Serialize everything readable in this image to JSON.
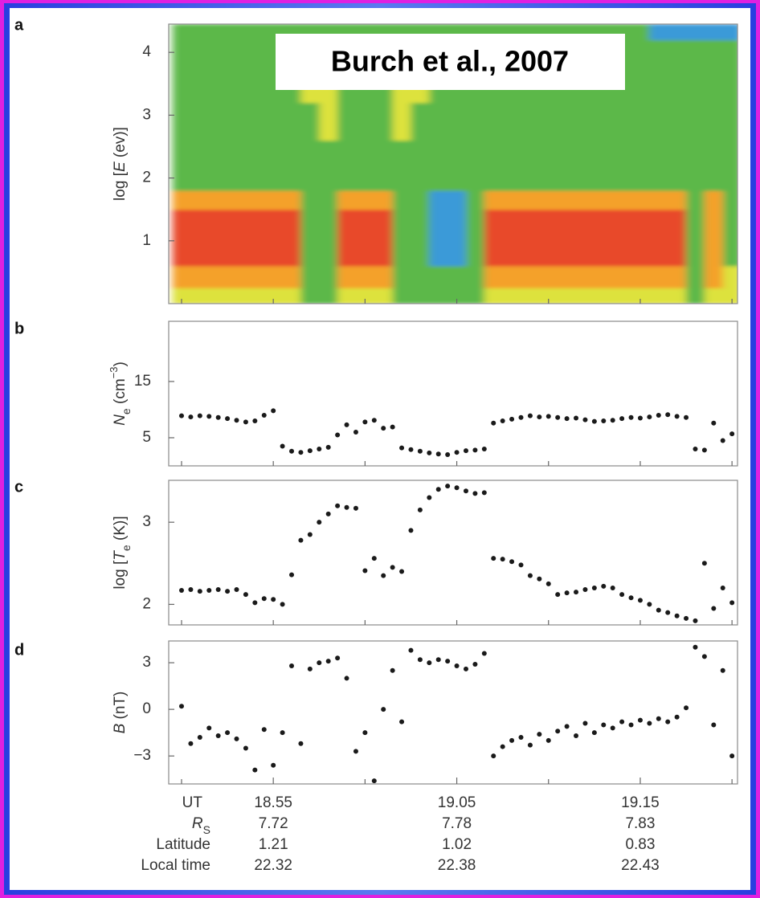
{
  "annotation": "Burch et al., 2007",
  "chart_data": [
    {
      "type": "heatmap",
      "panel": "a",
      "y_label": [
        {
          "text": "log ["
        },
        {
          "text": "E",
          "italic": true
        },
        {
          "text": " (ev)]"
        }
      ],
      "xlim": [
        49.3,
        80.3
      ],
      "xminorticks": [
        50,
        55,
        60,
        65,
        70,
        75,
        80
      ],
      "ylim": [
        0,
        4.45
      ],
      "yticks": [
        1,
        2,
        3,
        4
      ],
      "colorscale": [
        "#3a9ad8",
        "#5cb84a",
        "#dde23c",
        "#f4a12a",
        "#e8482c"
      ],
      "x_edges": [
        49.5,
        50.5,
        51.5,
        52.5,
        53.5,
        54.5,
        55.5,
        56.5,
        57.5,
        58.5,
        59.5,
        60.5,
        61.5,
        62.5,
        63.5,
        64.5,
        65.5,
        66.5,
        67.5,
        68.5,
        69.5,
        70.5,
        71.5,
        72.5,
        73.5,
        74.5,
        75.5,
        76.5,
        77.5,
        78.5,
        79.5,
        80.5
      ],
      "y_edges": [
        0,
        0.25,
        0.6,
        1.5,
        1.8,
        2.6,
        3.2,
        3.5,
        4.2,
        4.45
      ],
      "z": [
        [
          2,
          2,
          2,
          2,
          2,
          2,
          2,
          1,
          1,
          2,
          2,
          2,
          1,
          1,
          1,
          1,
          1,
          2,
          2,
          2,
          2,
          2,
          2,
          2,
          2,
          2,
          2,
          2,
          1,
          2,
          2
        ],
        [
          3,
          3,
          3,
          3,
          3,
          3,
          3,
          1,
          1,
          3,
          3,
          3,
          1,
          1,
          1,
          1,
          1,
          3,
          3,
          3,
          3,
          3,
          3,
          3,
          3,
          3,
          3,
          3,
          1,
          3,
          2
        ],
        [
          4,
          4,
          4,
          4,
          4,
          4,
          4,
          1,
          1,
          4,
          4,
          4,
          1,
          1,
          0,
          0,
          1,
          4,
          4,
          4,
          4,
          4,
          4,
          4,
          4,
          4,
          4,
          4,
          1,
          3,
          1
        ],
        [
          3,
          3,
          3,
          3,
          3,
          3,
          3,
          1,
          1,
          3,
          3,
          3,
          1,
          1,
          0,
          0,
          1,
          3,
          3,
          3,
          3,
          3,
          3,
          3,
          3,
          3,
          3,
          3,
          1,
          3,
          1
        ],
        [
          1,
          1,
          1,
          1,
          1,
          1,
          1,
          1,
          1,
          1,
          1,
          1,
          1,
          1,
          1,
          1,
          1,
          1,
          1,
          1,
          1,
          1,
          1,
          1,
          1,
          1,
          1,
          1,
          1,
          1,
          1
        ],
        [
          1,
          1,
          1,
          1,
          1,
          1,
          1,
          1,
          2,
          1,
          1,
          1,
          2,
          1,
          1,
          1,
          1,
          1,
          1,
          1,
          1,
          1,
          1,
          1,
          1,
          1,
          1,
          1,
          1,
          1,
          1
        ],
        [
          1,
          1,
          1,
          1,
          1,
          1,
          1,
          2,
          2,
          1,
          1,
          1,
          2,
          2,
          1,
          1,
          1,
          1,
          1,
          1,
          1,
          1,
          1,
          1,
          1,
          1,
          1,
          1,
          1,
          1,
          1
        ],
        [
          1,
          1,
          1,
          1,
          1,
          1,
          1,
          1,
          1,
          1,
          1,
          1,
          1,
          1,
          1,
          1,
          1,
          1,
          1,
          1,
          1,
          1,
          1,
          1,
          1,
          1,
          1,
          1,
          1,
          1,
          1
        ],
        [
          1,
          1,
          1,
          1,
          1,
          1,
          1,
          1,
          1,
          1,
          1,
          1,
          1,
          1,
          1,
          1,
          1,
          1,
          1,
          1,
          1,
          1,
          1,
          1,
          1,
          1,
          0,
          0,
          0,
          0,
          0
        ]
      ]
    },
    {
      "type": "scatter",
      "panel": "b",
      "y_label": [
        {
          "text": "N",
          "italic": true
        },
        {
          "text": "e",
          "sub": true
        },
        {
          "text": " (cm"
        },
        {
          "text": "−3",
          "sup": true
        },
        {
          "text": ")"
        }
      ],
      "xlim": [
        49.3,
        80.3
      ],
      "xminorticks": [
        50,
        55,
        60,
        65,
        70,
        75,
        80
      ],
      "ylim": [
        0,
        25.7
      ],
      "yticks": [
        5,
        15
      ],
      "x": [
        50,
        50.5,
        51,
        51.5,
        52,
        52.5,
        53,
        53.5,
        54,
        54.5,
        55,
        55.5,
        56,
        56.5,
        57,
        57.5,
        58,
        58.5,
        59,
        59.5,
        60,
        60.5,
        61,
        61.5,
        62,
        62.5,
        63,
        63.5,
        64,
        64.5,
        65,
        65.5,
        66,
        66.5,
        67,
        67.5,
        68,
        68.5,
        69,
        69.5,
        70,
        70.5,
        71,
        71.5,
        72,
        72.5,
        73,
        73.5,
        74,
        74.5,
        75,
        75.5,
        76,
        76.5,
        77,
        77.5,
        78,
        78.5,
        79,
        79.5,
        80
      ],
      "series": [
        {
          "color": "#1a1a1a",
          "values": [
            8.9,
            8.7,
            8.9,
            8.8,
            8.6,
            8.4,
            8.1,
            7.8,
            8.0,
            9.0,
            9.8,
            3.5,
            2.6,
            2.4,
            2.7,
            3.0,
            3.3,
            5.5,
            7.3,
            6.0,
            7.8,
            8.1,
            6.7,
            6.9,
            3.2,
            2.9,
            2.6,
            2.3,
            2.1,
            2.0,
            2.4,
            2.7,
            2.8,
            3.0,
            7.6,
            8.0,
            8.3,
            8.6,
            8.9,
            8.7,
            8.8,
            8.6,
            8.4,
            8.5,
            8.2,
            7.9,
            8.0,
            8.1,
            8.4,
            8.6,
            8.5,
            8.7,
            9.0,
            9.1,
            8.8,
            8.6,
            3.0,
            2.8,
            7.6,
            4.5,
            5.7
          ]
        }
      ]
    },
    {
      "type": "scatter",
      "panel": "c",
      "y_label": [
        {
          "text": "log ["
        },
        {
          "text": "T",
          "italic": true
        },
        {
          "text": "e",
          "sub": true
        },
        {
          "text": " (K)]"
        }
      ],
      "xlim": [
        49.3,
        80.3
      ],
      "xminorticks": [
        50,
        55,
        60,
        65,
        70,
        75,
        80
      ],
      "ylim": [
        1.75,
        3.51
      ],
      "yticks": [
        2,
        3
      ],
      "x": [
        50,
        50.5,
        51,
        51.5,
        52,
        52.5,
        53,
        53.5,
        54,
        54.5,
        55,
        55.5,
        56,
        56.5,
        57,
        57.5,
        58,
        58.5,
        59,
        59.5,
        60,
        60.5,
        61,
        61.5,
        62,
        62.5,
        63,
        63.5,
        64,
        64.5,
        65,
        65.5,
        66,
        66.5,
        67,
        67.5,
        68,
        68.5,
        69,
        69.5,
        70,
        70.5,
        71,
        71.5,
        72,
        72.5,
        73,
        73.5,
        74,
        74.5,
        75,
        75.5,
        76,
        76.5,
        77,
        77.5,
        78,
        78.5,
        79,
        79.5,
        80
      ],
      "series": [
        {
          "color": "#1a1a1a",
          "values": [
            2.17,
            2.18,
            2.16,
            2.17,
            2.18,
            2.16,
            2.18,
            2.12,
            2.02,
            2.07,
            2.06,
            2.0,
            2.36,
            2.78,
            2.85,
            3.0,
            3.1,
            3.2,
            3.18,
            3.17,
            2.41,
            2.56,
            2.35,
            2.45,
            2.4,
            2.9,
            3.15,
            3.3,
            3.4,
            3.44,
            3.42,
            3.38,
            3.35,
            3.36,
            2.56,
            2.55,
            2.52,
            2.48,
            2.35,
            2.31,
            2.25,
            2.12,
            2.14,
            2.15,
            2.18,
            2.2,
            2.22,
            2.2,
            2.12,
            2.08,
            2.05,
            2.0,
            1.93,
            1.9,
            1.86,
            1.83,
            1.8,
            2.5,
            1.95,
            2.2,
            2.02
          ]
        }
      ]
    },
    {
      "type": "scatter",
      "panel": "d",
      "y_label": [
        {
          "text": "B",
          "italic": true
        },
        {
          "text": " (nT)"
        }
      ],
      "xlim": [
        49.3,
        80.3
      ],
      "xminorticks": [
        50,
        60,
        70,
        80
      ],
      "xticks": [
        {
          "value": 55,
          "label": "18.55"
        },
        {
          "value": 65,
          "label": "19.05"
        },
        {
          "value": 75,
          "label": "19.15"
        }
      ],
      "ylim": [
        -4.8,
        4.4
      ],
      "yticks": [
        {
          "value": -3,
          "label": "−3"
        },
        0,
        3
      ],
      "x": [
        50,
        50.5,
        51,
        51.5,
        52,
        52.5,
        53,
        53.5,
        54,
        54.5,
        55,
        55.5,
        56,
        56.5,
        57,
        57.5,
        58,
        58.5,
        59,
        59.5,
        60,
        60.5,
        61,
        61.5,
        62,
        62.5,
        63,
        63.5,
        64,
        64.5,
        65,
        65.5,
        66,
        66.5,
        67,
        67.5,
        68,
        68.5,
        69,
        69.5,
        70,
        70.5,
        71,
        71.5,
        72,
        72.5,
        73,
        73.5,
        74,
        74.5,
        75,
        75.5,
        76,
        76.5,
        77,
        77.5,
        78,
        78.5,
        79,
        79.5,
        80
      ],
      "series": [
        {
          "color": "#1a1a1a",
          "values": [
            0.2,
            -2.2,
            -1.8,
            -1.2,
            -1.7,
            -1.5,
            -1.9,
            -2.5,
            -3.9,
            -1.3,
            -3.6,
            -1.5,
            2.8,
            -2.2,
            2.6,
            3.0,
            3.1,
            3.3,
            2.0,
            -2.7,
            -1.5,
            -4.6,
            0,
            2.5,
            -0.8,
            3.8,
            3.2,
            3.0,
            3.2,
            3.1,
            2.8,
            2.6,
            2.9,
            3.6,
            -3.0,
            -2.4,
            -2.0,
            -1.8,
            -2.3,
            -1.6,
            -2.0,
            -1.4,
            -1.1,
            -1.7,
            -0.9,
            -1.5,
            -1.0,
            -1.2,
            -0.8,
            -1.0,
            -0.7,
            -0.9,
            -0.6,
            -0.8,
            -0.5,
            0.1,
            4.0,
            3.4,
            -1.0,
            2.5,
            -3.0
          ]
        }
      ]
    }
  ],
  "table": {
    "x_label": "UT",
    "rows": [
      {
        "label": [
          {
            "text": "R",
            "italic": true
          },
          {
            "text": "S",
            "sub": true
          }
        ],
        "values": [
          7.72,
          7.78,
          7.83
        ]
      },
      {
        "label": [
          {
            "text": "Latitude"
          }
        ],
        "values": [
          1.21,
          1.02,
          0.83
        ]
      },
      {
        "label": [
          {
            "text": "Local time"
          }
        ],
        "values": [
          22.32,
          22.38,
          22.43
        ]
      }
    ]
  }
}
